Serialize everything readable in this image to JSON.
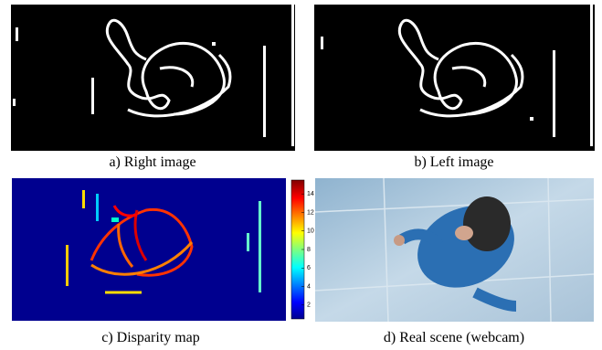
{
  "panels": [
    {
      "caption": "a) Right image"
    },
    {
      "caption": "b) Left image"
    },
    {
      "caption": "c) Disparity map"
    },
    {
      "caption": "d) Real scene (webcam)"
    }
  ],
  "colorbar": {
    "lim": [
      0.5,
      15.5
    ],
    "ticks": [
      2,
      4,
      6,
      8,
      10,
      12,
      14
    ]
  }
}
